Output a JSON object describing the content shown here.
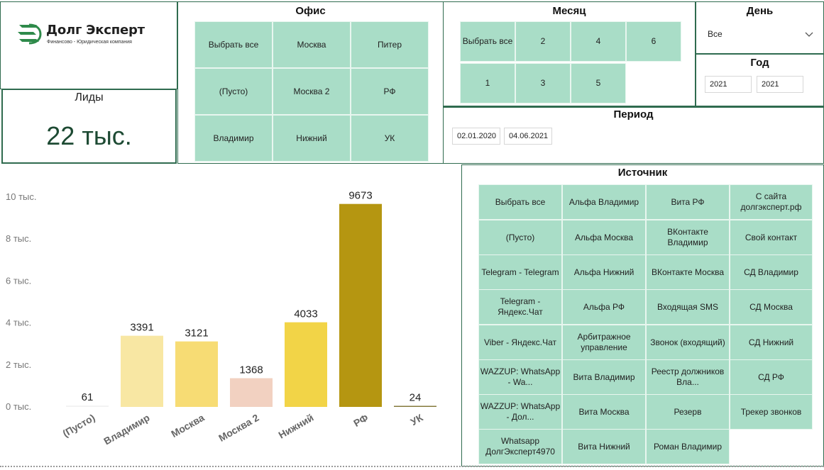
{
  "logo": {
    "name": "Долг Эксперт",
    "tagline": "Финансово - Юридическая компания"
  },
  "kpi": {
    "label": "Лиды",
    "value": "22 тыс."
  },
  "office": {
    "title": "Офис",
    "items": [
      "Выбрать все",
      "Москва",
      "Питер",
      "(Пусто)",
      "Москва 2",
      "РФ",
      "Владимир",
      "Нижний",
      "УК"
    ]
  },
  "month": {
    "title": "Месяц",
    "items": [
      "Выбрать все",
      "2",
      "4",
      "6",
      "1",
      "3",
      "5"
    ]
  },
  "day": {
    "title": "День",
    "selected": "Все"
  },
  "year": {
    "title": "Год",
    "from": "2021",
    "to": "2021"
  },
  "period": {
    "title": "Период",
    "from": "02.01.2020",
    "to": "04.06.2021"
  },
  "source": {
    "title": "Источник",
    "items": [
      "Выбрать все",
      "Альфа Владимир",
      "Вита РФ",
      "С сайта долгэксперт.рф",
      "(Пусто)",
      "Альфа Москва",
      "ВКонтакте Владимир",
      "Свой контакт",
      "Telegram - Telegram",
      "Альфа Нижний",
      "ВКонтакте Москва",
      "СД Владимир",
      "Telegram - Яндекс.Чат",
      "Альфа РФ",
      "Входящая SMS",
      "СД Москва",
      "Viber - Яндекс.Чат",
      "Арбитражное управление",
      "Звонок (входящий)",
      "СД Нижний",
      "WAZZUP: WhatsApp - Wa...",
      "Вита Владимир",
      "Реестр должников Вла...",
      "СД РФ",
      "WAZZUP: WhatsApp - Дол...",
      "Вита Москва",
      "Резерв",
      "Трекер звонков",
      "Whatsapp ДолгЭксперт4970",
      "Вита Нижний",
      "Роман Владимир"
    ]
  },
  "colors": {
    "border": "#2f6b4f",
    "tile": "#a9ddc7",
    "kpi_value": "#1d4a33"
  },
  "chart_data": {
    "type": "bar",
    "categories": [
      "(Пусто)",
      "Владимир",
      "Москва",
      "Москва 2",
      "Нижний",
      "РФ",
      "УК"
    ],
    "values": [
      61,
      3391,
      3121,
      1368,
      4033,
      9673,
      24
    ],
    "data_labels": [
      "61",
      "3391",
      "3121",
      "1368",
      "4033",
      "9673",
      "24"
    ],
    "colors": [
      "#f2f2f2",
      "#f8e7a3",
      "#f7dc74",
      "#f2d1c1",
      "#f2d447",
      "#b59611",
      "#857a3c"
    ],
    "ylim": [
      0,
      10000
    ],
    "yticks": [
      0,
      2000,
      4000,
      6000,
      8000,
      10000
    ],
    "ytick_labels": [
      "0 тыс.",
      "2 тыс.",
      "4 тыс.",
      "6 тыс.",
      "8 тыс.",
      "10 тыс."
    ],
    "grid": false,
    "title": "",
    "xlabel": "",
    "ylabel": ""
  }
}
